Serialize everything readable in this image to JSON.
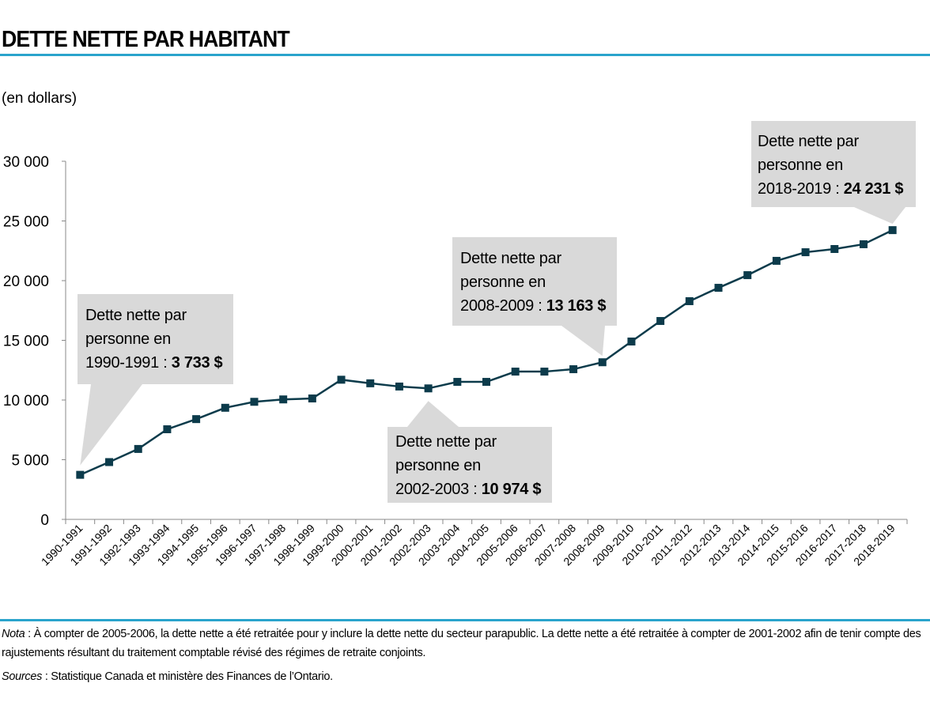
{
  "title": "DETTE NETTE PAR HABITANT",
  "colors": {
    "line": "#0c3b4b",
    "rule": "#2aa4cc",
    "callout": "#d9d9d9"
  },
  "chart_data": {
    "type": "line",
    "title": "DETTE NETTE PAR HABITANT",
    "ylabel": "(en dollars)",
    "xlabel": "",
    "ylim": [
      0,
      30000
    ],
    "yticks": [
      0,
      5000,
      10000,
      15000,
      20000,
      25000,
      30000
    ],
    "ytick_labels": [
      "0",
      "5 000",
      "10 000",
      "15 000",
      "20 000",
      "25 000",
      "30 000"
    ],
    "grid": false,
    "categories": [
      "1990-1991",
      "1991-1992",
      "1992-1993",
      "1993-1994",
      "1994-1995",
      "1995-1996",
      "1996-1997",
      "1997-1998",
      "1998-1999",
      "1999-2000",
      "2000-2001",
      "2001-2002",
      "2002-2003",
      "2003-2004",
      "2004-2005",
      "2005-2006",
      "2006-2007",
      "2007-2008",
      "2008-2009",
      "2009-2010",
      "2010-2011",
      "2011-2012",
      "2012-2013",
      "2013-2014",
      "2014-2015",
      "2015-2016",
      "2016-2017",
      "2017-2018",
      "2018-2019"
    ],
    "values": [
      3733,
      4800,
      5900,
      7550,
      8400,
      9350,
      9850,
      10050,
      10130,
      11700,
      11400,
      11130,
      10974,
      11520,
      11520,
      12380,
      12380,
      12580,
      13163,
      14900,
      16620,
      18280,
      19400,
      20460,
      21660,
      22380,
      22650,
      23050,
      24231
    ],
    "annotations": [
      {
        "l1": "Dette nette par",
        "l2": "personne en",
        "period": "1990-1991 :",
        "value": "3 733 $"
      },
      {
        "l1": "Dette nette par",
        "l2": "personne en",
        "period": "2002-2003 :",
        "value": "10 974 $"
      },
      {
        "l1": "Dette nette par",
        "l2": "personne en",
        "period": "2008-2009 :",
        "value": "13 163 $"
      },
      {
        "l1": "Dette nette par",
        "l2": "personne en",
        "period": "2018-2019 :",
        "value": "24 231 $"
      }
    ]
  },
  "footnote": {
    "nota_label": "Nota",
    "nota_text": " : À compter de 2005-2006, la dette nette a été retraitée pour y inclure la dette nette du secteur parapublic. La dette nette a été retraitée à compter de 2001-2002 afin de tenir compte des rajustements résultant du traitement comptable révisé des régimes de retraite conjoints.",
    "sources_label": "Sources",
    "sources_text": " : Statistique  Canada et ministère des Finances de l’Ontario."
  }
}
